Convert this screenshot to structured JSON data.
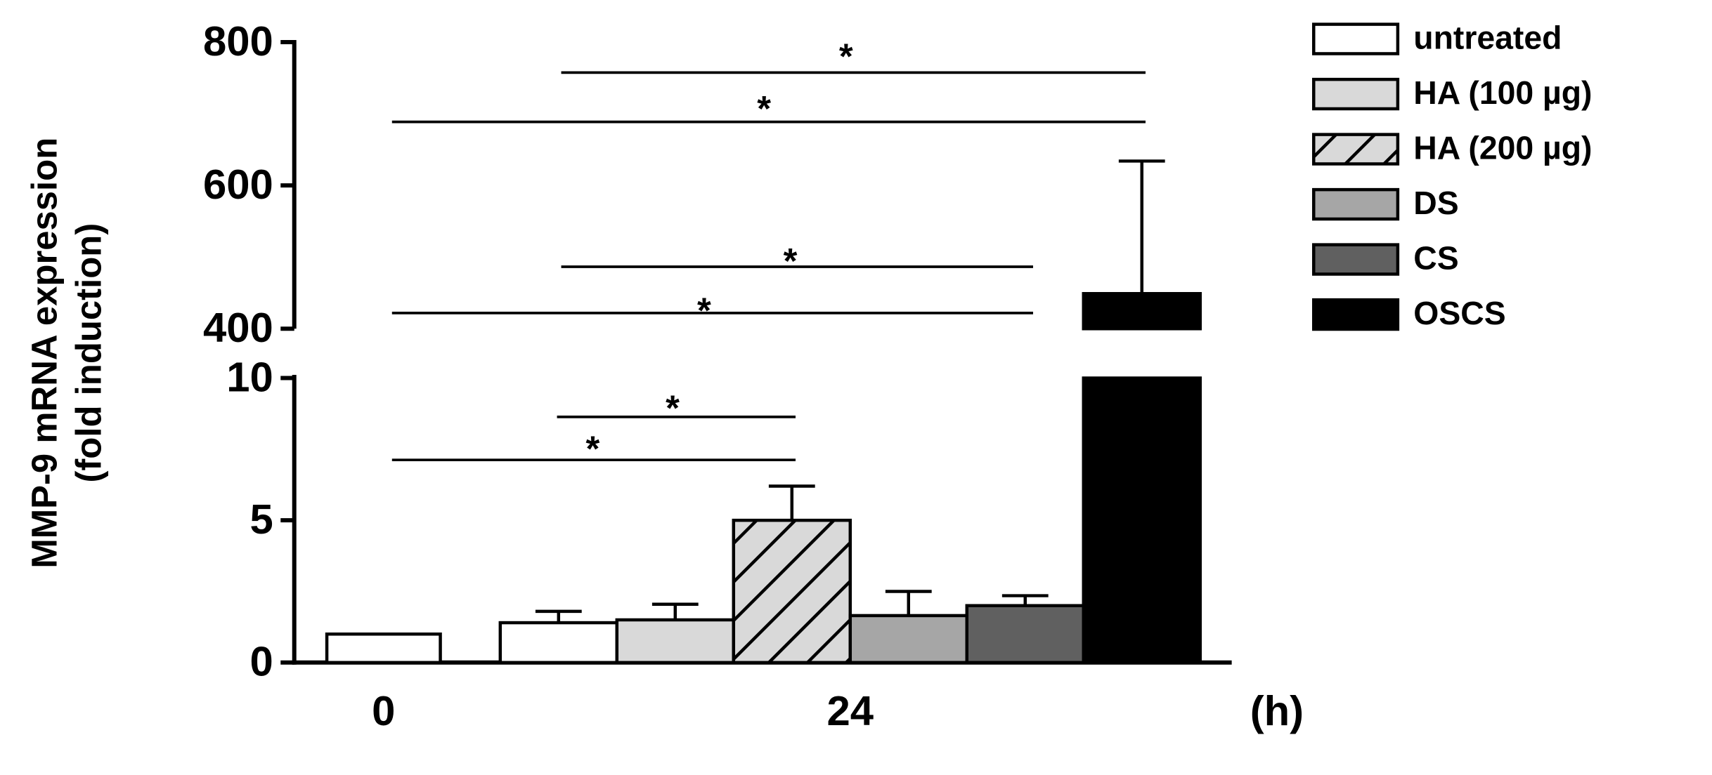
{
  "chart_data": {
    "type": "broken-bar",
    "y_label": [
      "MMP-9 mRNA expression",
      "(fold induction)"
    ],
    "x_label": "(h)",
    "categories": [
      "0",
      "24"
    ],
    "segments": [
      {
        "ylim": [
          0,
          10
        ],
        "yticks": [
          0,
          5,
          10
        ]
      },
      {
        "ylim": [
          400,
          800
        ],
        "yticks": [
          400,
          600,
          800
        ]
      }
    ],
    "series": [
      {
        "name": "untreated",
        "color": "#ffffff",
        "values": [
          1,
          1.4
        ],
        "errors": [
          null,
          0.4
        ]
      },
      {
        "name": "HA (100 µg)",
        "color": "#d9d9d9",
        "values": [
          null,
          1.5
        ],
        "errors": [
          null,
          0.55
        ]
      },
      {
        "name": "HA (200 µg)",
        "color": "#d9d9d9",
        "pattern": "hatch",
        "values": [
          null,
          5.0
        ],
        "errors": [
          null,
          1.2
        ]
      },
      {
        "name": "DS",
        "color": "#a6a6a6",
        "values": [
          null,
          1.65
        ],
        "errors": [
          null,
          0.85
        ]
      },
      {
        "name": "CS",
        "color": "#606060",
        "values": [
          null,
          2.0
        ],
        "errors": [
          null,
          0.35
        ]
      },
      {
        "name": "OSCS",
        "color": "#000000",
        "values": [
          null,
          449
        ],
        "errors": [
          null,
          185
        ]
      }
    ],
    "annotations": [
      "*",
      "*",
      "*",
      "*",
      "*",
      "*"
    ]
  }
}
